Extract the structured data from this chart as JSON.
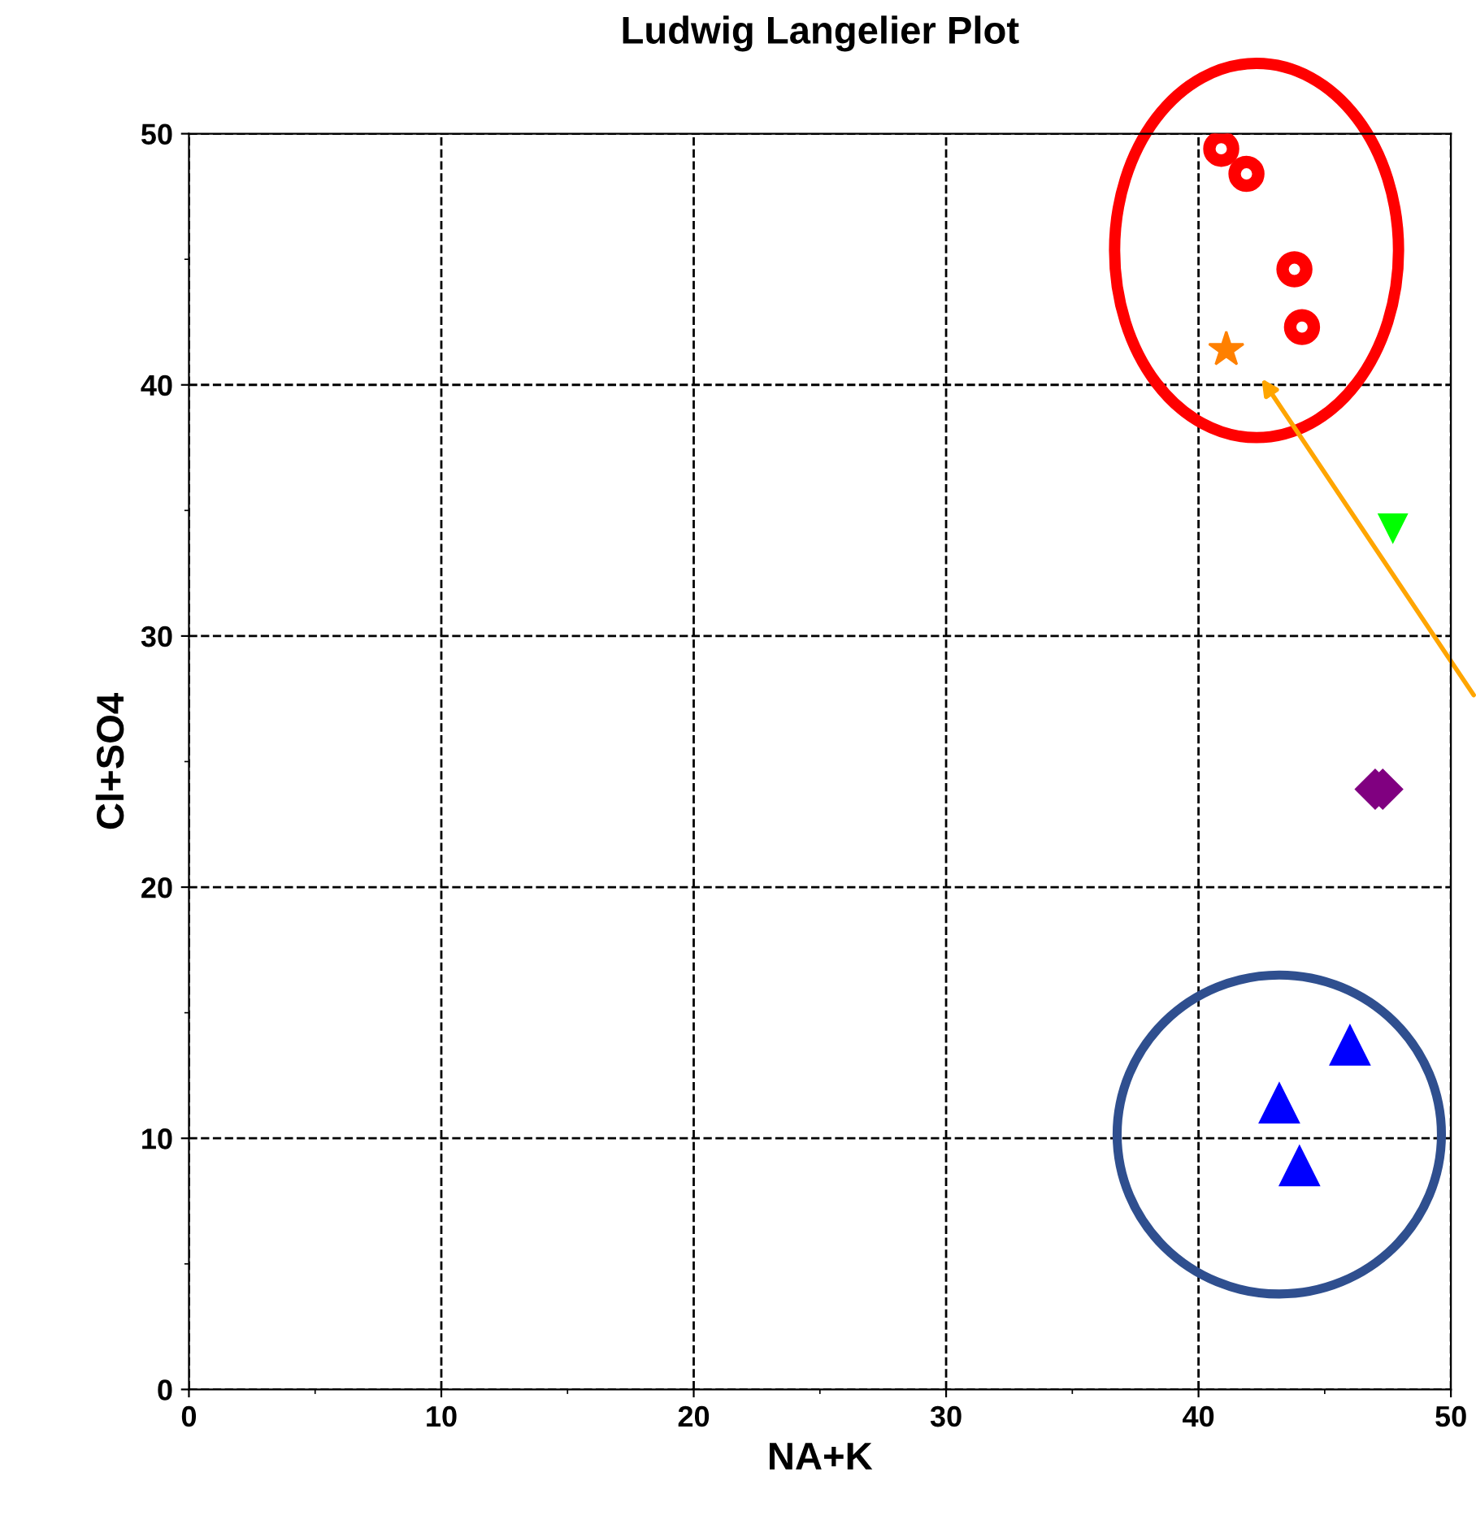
{
  "chart_data": {
    "type": "scatter",
    "title": "Ludwig Langelier Plot",
    "xlabel": "NA+K",
    "ylabel": "Cl+SO4",
    "xlim": [
      0,
      50
    ],
    "ylim": [
      0,
      50
    ],
    "xticks": [
      0,
      10,
      20,
      30,
      40,
      50
    ],
    "yticks": [
      0,
      10,
      20,
      30,
      40,
      50
    ],
    "grid": true,
    "line_style": "dashed",
    "series": [
      {
        "color": "#ff0000",
        "marker": "circle",
        "x": [
          40.9,
          41.9,
          43.8,
          44.1
        ],
        "values": [
          49.4,
          48.4,
          44.6,
          42.3
        ]
      },
      {
        "color": "#ff8000",
        "marker": "star",
        "x": [
          41.1
        ],
        "values": [
          41.4
        ]
      },
      {
        "color": "#00ff00",
        "marker": "triangle_down",
        "x": [
          47.7
        ],
        "values": [
          34.3
        ]
      },
      {
        "color": "#800080",
        "marker": "diamond",
        "x": [
          47.0,
          47.3
        ],
        "values": [
          23.9,
          23.9
        ]
      },
      {
        "color": "#0000ff",
        "marker": "triangle",
        "x": [
          46.0,
          43.2,
          44.0
        ],
        "values": [
          13.7,
          11.4,
          8.9
        ]
      }
    ]
  }
}
